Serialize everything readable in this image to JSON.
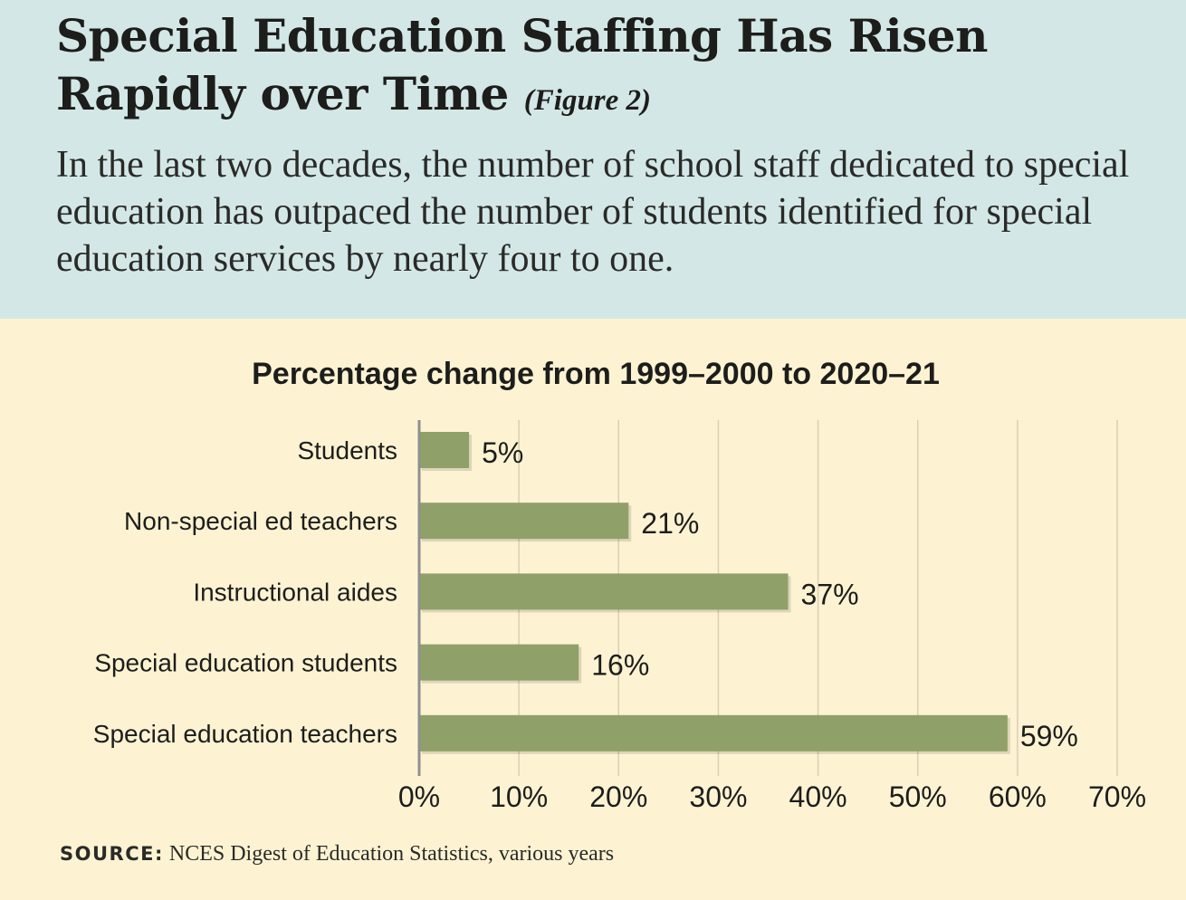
{
  "header": {
    "title": "Special Education Staffing Has Risen Rapidly over Time",
    "figure_label": "(Figure 2)",
    "subtitle": "In the last two decades, the number of school staff dedicated to special education has outpaced the number of students identified for special education services by nearly four to one."
  },
  "source": {
    "label": "SOURCE:",
    "text": "NCES Digest of Education Statistics, various years"
  },
  "colors": {
    "header_bg": "#d3e8e6",
    "chart_bg": "#fdf3d3",
    "bar": "#8fa068",
    "grid": "#d8cfb4",
    "axis": "#8f8f8f"
  },
  "chart_data": {
    "type": "bar",
    "orientation": "horizontal",
    "title": "Percentage change from 1999–2000 to 2020–21",
    "categories": [
      "Students",
      "Non-special ed teachers",
      "Instructional aides",
      "Special education students",
      "Special education teachers"
    ],
    "values": [
      5,
      21,
      37,
      16,
      59
    ],
    "data_labels": [
      "5%",
      "21%",
      "37%",
      "16%",
      "59%"
    ],
    "xlim": [
      0,
      70
    ],
    "xticks": [
      0,
      10,
      20,
      30,
      40,
      50,
      60,
      70
    ],
    "tick_labels": [
      "0%",
      "10%",
      "20%",
      "30%",
      "40%",
      "50%",
      "60%",
      "70%"
    ],
    "grid": true,
    "legend": "none"
  }
}
